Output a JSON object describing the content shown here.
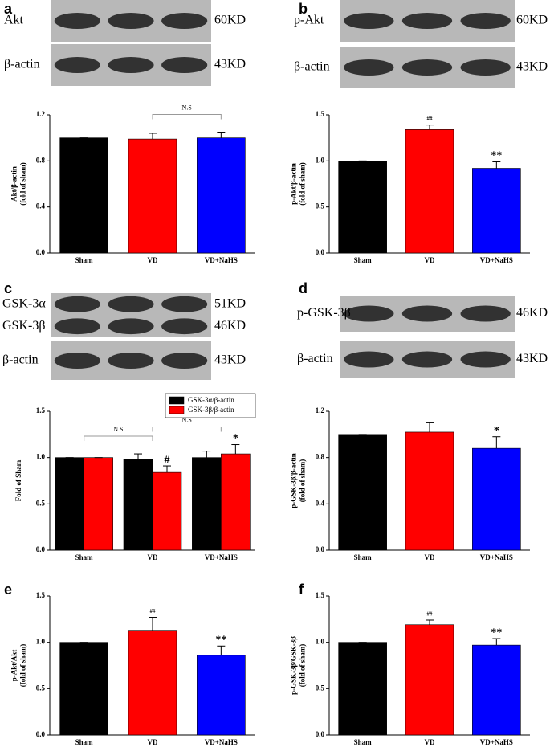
{
  "panels": [
    {
      "letter": "a",
      "blots": [
        {
          "labels": [
            "Akt"
          ],
          "sizes": [
            "60KD"
          ]
        },
        {
          "labels": [
            "β-actin"
          ],
          "sizes": [
            "43KD"
          ]
        }
      ]
    },
    {
      "letter": "b",
      "blots": [
        {
          "labels": [
            "p-Akt"
          ],
          "sizes": [
            "60KD"
          ]
        },
        {
          "labels": [
            "β-actin"
          ],
          "sizes": [
            "43KD"
          ]
        }
      ]
    },
    {
      "letter": "c",
      "blots": [
        {
          "labels": [
            "GSK-3α",
            "GSK-3β"
          ],
          "sizes": [
            "51KD",
            "46KD"
          ]
        },
        {
          "labels": [
            "β-actin"
          ],
          "sizes": [
            "43KD"
          ]
        }
      ]
    },
    {
      "letter": "d",
      "blots": [
        {
          "labels": [
            "p-GSK-3β"
          ],
          "sizes": [
            "46KD"
          ]
        },
        {
          "labels": [
            "β-actin"
          ],
          "sizes": [
            "43KD"
          ]
        }
      ]
    },
    {
      "letter": "e",
      "blots": []
    },
    {
      "letter": "f",
      "blots": []
    }
  ],
  "chart_data": [
    {
      "type": "bar",
      "ylabel": [
        "Akt/β-actin",
        "(fold of sham)"
      ],
      "categories": [
        "Sham",
        "VD",
        "VD+NaHS"
      ],
      "values": [
        1.0,
        0.99,
        1.0
      ],
      "errors": [
        0,
        0.05,
        0.05
      ],
      "colors": [
        "#000000",
        "#ff0000",
        "#0000ff"
      ],
      "ylim": [
        0,
        1.2
      ],
      "yticks": [
        {
          "value": 0,
          "label": "0.0"
        },
        {
          "value": 0.4,
          "label": "0.4"
        },
        {
          "value": 0.8,
          "label": "0.8"
        },
        {
          "value": 1.2,
          "label": "1.2"
        }
      ],
      "annotations": [],
      "brackets": [
        {
          "text": "N.S",
          "from": 1,
          "to": 2
        }
      ]
    },
    {
      "type": "bar",
      "ylabel": [
        "p-Akt/β-actin",
        "(fold of sham)"
      ],
      "categories": [
        "Sham",
        "VD",
        "VD+NaHS"
      ],
      "values": [
        1.0,
        1.34,
        0.92
      ],
      "errors": [
        0,
        0.05,
        0.07
      ],
      "colors": [
        "#000000",
        "#ff0000",
        "#0000ff"
      ],
      "ylim": [
        0,
        1.5
      ],
      "yticks": [
        {
          "value": 0,
          "label": "0.0"
        },
        {
          "value": 0.5,
          "label": "0.5"
        },
        {
          "value": 1,
          "label": "1.0"
        },
        {
          "value": 1.5,
          "label": "1.5"
        }
      ],
      "annotations": [
        {
          "text": "##",
          "category": 1
        },
        {
          "text": "**",
          "category": 2
        }
      ],
      "brackets": []
    },
    {
      "type": "grouped_bar",
      "ylabel": [
        "Fold of Sham"
      ],
      "categories": [
        "Sham",
        "VD",
        "VD+NaHS"
      ],
      "series": [
        {
          "name": "GSK-3α/β-actin",
          "color": "#000000",
          "values": [
            1.0,
            0.98,
            1.0
          ],
          "errors": [
            0,
            0.06,
            0.07
          ]
        },
        {
          "name": "GSK-3β/β-actin",
          "color": "#ff0000",
          "values": [
            1.0,
            0.84,
            1.04
          ],
          "errors": [
            0,
            0.07,
            0.1
          ]
        }
      ],
      "legend": "upper right",
      "ylim": [
        0,
        1.5
      ],
      "yticks": [
        {
          "value": 0,
          "label": "0.0"
        },
        {
          "value": 0.5,
          "label": "0.5"
        },
        {
          "value": 1,
          "label": "1.0"
        },
        {
          "value": 1.5,
          "label": "1.5"
        }
      ],
      "annotations": [
        {
          "text": "#",
          "category": 1,
          "series": 1
        },
        {
          "text": "*",
          "category": 2,
          "series": 1
        }
      ],
      "brackets": [
        {
          "text": "N.S",
          "from": 0,
          "to": 1
        },
        {
          "text": "N.S",
          "from": 1,
          "to": 2
        }
      ]
    },
    {
      "type": "bar",
      "ylabel": [
        "p-GSK-3β/β-actin",
        "(fold of sham)"
      ],
      "categories": [
        "Sham",
        "VD",
        "VD+NaHS"
      ],
      "values": [
        1.0,
        1.02,
        0.88
      ],
      "errors": [
        0,
        0.08,
        0.1
      ],
      "colors": [
        "#000000",
        "#ff0000",
        "#0000ff"
      ],
      "ylim": [
        0,
        1.2
      ],
      "yticks": [
        {
          "value": 0,
          "label": "0.0"
        },
        {
          "value": 0.4,
          "label": "0.4"
        },
        {
          "value": 0.8,
          "label": "0.8"
        },
        {
          "value": 1.2,
          "label": "1.2"
        }
      ],
      "annotations": [
        {
          "text": "*",
          "category": 2
        }
      ],
      "brackets": []
    },
    {
      "type": "bar",
      "ylabel": [
        "p-Akt/Akt",
        "(fold of sham)"
      ],
      "categories": [
        "Sham",
        "VD",
        "VD+NaHS"
      ],
      "values": [
        1.0,
        1.13,
        0.86
      ],
      "errors": [
        0,
        0.14,
        0.1
      ],
      "colors": [
        "#000000",
        "#ff0000",
        "#0000ff"
      ],
      "ylim": [
        0,
        1.5
      ],
      "yticks": [
        {
          "value": 0,
          "label": "0.0"
        },
        {
          "value": 0.5,
          "label": "0.5"
        },
        {
          "value": 1,
          "label": "1.0"
        },
        {
          "value": 1.5,
          "label": "1.5"
        }
      ],
      "annotations": [
        {
          "text": "##",
          "category": 1
        },
        {
          "text": "**",
          "category": 2
        }
      ],
      "brackets": []
    },
    {
      "type": "bar",
      "ylabel": [
        "p-GSK-3β/GSK-3β",
        "(fold of sham)"
      ],
      "categories": [
        "Sham",
        "VD",
        "VD+NaHS"
      ],
      "values": [
        1.0,
        1.19,
        0.97
      ],
      "errors": [
        0,
        0.05,
        0.07
      ],
      "colors": [
        "#000000",
        "#ff0000",
        "#0000ff"
      ],
      "ylim": [
        0,
        1.5
      ],
      "yticks": [
        {
          "value": 0,
          "label": "0.0"
        },
        {
          "value": 0.5,
          "label": "0.5"
        },
        {
          "value": 1,
          "label": "1.0"
        },
        {
          "value": 1.5,
          "label": "1.5"
        }
      ],
      "annotations": [
        {
          "text": "##",
          "category": 1
        },
        {
          "text": "**",
          "category": 2
        }
      ],
      "brackets": []
    }
  ]
}
